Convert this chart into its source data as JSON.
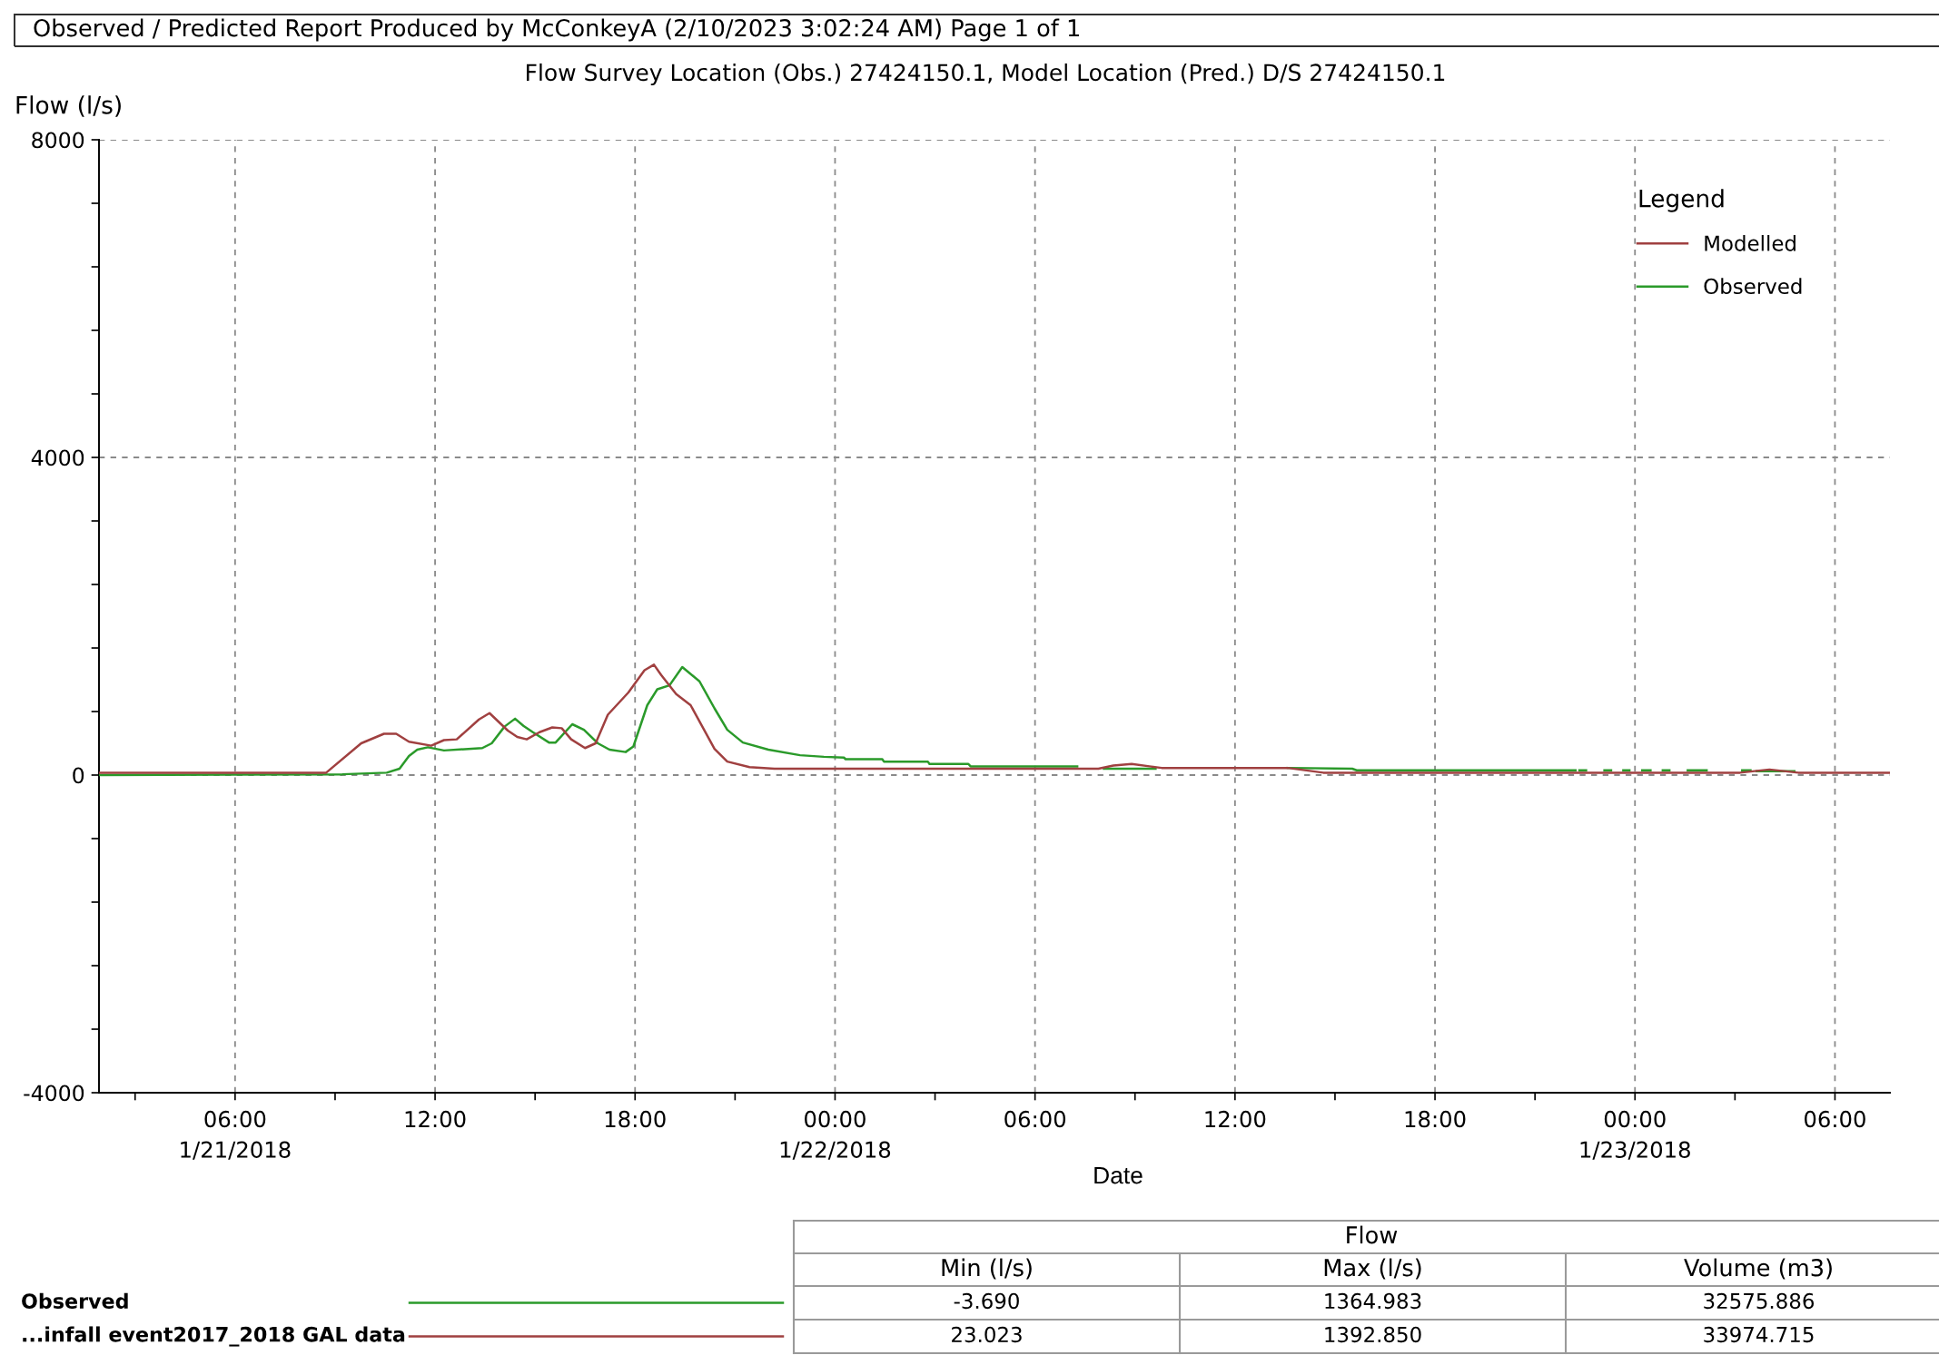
{
  "chart_data": {
    "type": "line",
    "title": "Flow Survey Location (Obs.) 27424150.1, Model Location (Pred.) D/S 27424150.1",
    "xlabel": "Date",
    "ylabel": "Flow (l/s)",
    "legend_title": "Legend",
    "legend": "top right",
    "grid": true,
    "xlim": [
      "2018-01-21T01:55",
      "2018-01-23T07:39"
    ],
    "ylim": [
      -4000,
      8000
    ],
    "xticks": [
      {
        "value": "2018-01-21T06:00",
        "label": "06:00\n1/21/2018"
      },
      {
        "value": "2018-01-21T12:00",
        "label": "12:00"
      },
      {
        "value": "2018-01-21T18:00",
        "label": "18:00"
      },
      {
        "value": "2018-01-22T00:00",
        "label": "00:00\n1/22/2018"
      },
      {
        "value": "2018-01-22T06:00",
        "label": "06:00"
      },
      {
        "value": "2018-01-22T12:00",
        "label": "12:00"
      },
      {
        "value": "2018-01-22T18:00",
        "label": "18:00"
      },
      {
        "value": "2018-01-23T00:00",
        "label": "00:00\n1/23/2018"
      },
      {
        "value": "2018-01-23T06:00",
        "label": "06:00"
      },
      {
        "value": "2018-01-21T03:00",
        "label": null
      },
      {
        "value": "2018-01-21T09:00",
        "label": null
      },
      {
        "value": "2018-01-21T15:00",
        "label": null
      },
      {
        "value": "2018-01-21T21:00",
        "label": null
      },
      {
        "value": "2018-01-22T03:00",
        "label": null
      },
      {
        "value": "2018-01-22T09:00",
        "label": null
      },
      {
        "value": "2018-01-22T15:00",
        "label": null
      },
      {
        "value": "2018-01-22T21:00",
        "label": null
      },
      {
        "value": "2018-01-23T03:00",
        "label": null
      }
    ],
    "yticks": [
      8000,
      4000,
      0,
      -4000,
      {
        "value": 7200,
        "label": null
      },
      {
        "value": 6400,
        "label": null
      },
      {
        "value": 5600,
        "label": null
      },
      {
        "value": 4800,
        "label": null
      },
      {
        "value": 3200,
        "label": null
      },
      {
        "value": 2400,
        "label": null
      },
      {
        "value": 1600,
        "label": null
      },
      {
        "value": 800,
        "label": null
      },
      {
        "value": -800,
        "label": null
      },
      {
        "value": -1600,
        "label": null
      },
      {
        "value": -2400,
        "label": null
      },
      {
        "value": -3200,
        "label": null
      }
    ],
    "series": [
      {
        "name": "Modelled",
        "color": "#a04040",
        "x": [
          "2018-01-21T01:55",
          "2018-01-21T08:44",
          "2018-01-21T09:47",
          "2018-01-21T10:28",
          "2018-01-21T10:50",
          "2018-01-21T11:13",
          "2018-01-21T11:53",
          "2018-01-21T12:16",
          "2018-01-21T12:39",
          "2018-01-21T13:19",
          "2018-01-21T13:38",
          "2018-01-21T14:11",
          "2018-01-21T14:28",
          "2018-01-21T14:45",
          "2018-01-21T15:08",
          "2018-01-21T15:31",
          "2018-01-21T15:48",
          "2018-01-21T16:05",
          "2018-01-21T16:30",
          "2018-01-21T16:49",
          "2018-01-21T17:11",
          "2018-01-21T17:48",
          "2018-01-21T18:17",
          "2018-01-21T18:34",
          "2018-01-21T18:47",
          "2018-01-21T19:14",
          "2018-01-21T19:40",
          "2018-01-21T20:23",
          "2018-01-21T20:46",
          "2018-01-21T21:26",
          "2018-01-21T22:11",
          "2018-01-22T07:54",
          "2018-01-22T08:21",
          "2018-01-22T08:54",
          "2018-01-22T09:26",
          "2018-01-22T09:48",
          "2018-01-22T13:35",
          "2018-01-22T14:39",
          "2018-01-23T03:09",
          "2018-01-23T04:02",
          "2018-01-23T04:54",
          "2018-01-23T07:39"
        ],
        "values": [
          30,
          30,
          400,
          520,
          520,
          420,
          370,
          440,
          450,
          700,
          780,
          560,
          480,
          450,
          540,
          600,
          590,
          450,
          340,
          400,
          760,
          1040,
          1320,
          1390,
          1260,
          1020,
          880,
          330,
          170,
          100,
          80,
          80,
          120,
          140,
          110,
          90,
          90,
          30,
          30,
          70,
          30,
          30
        ]
      },
      {
        "name": "Observed",
        "color": "#2a9a2a",
        "x": [
          "2018-01-21T01:55",
          "2018-01-21T09:13",
          "2018-01-21T10:33",
          "2018-01-21T10:56",
          "2018-01-21T11:13",
          "2018-01-21T11:28",
          "2018-01-21T11:47",
          "2018-01-21T12:16",
          "2018-01-21T13:25",
          "2018-01-21T13:42",
          "2018-01-21T14:05",
          "2018-01-21T14:24",
          "2018-01-21T14:39",
          "2018-01-21T14:56",
          "2018-01-21T15:25",
          "2018-01-21T15:37",
          "2018-01-21T16:07",
          "2018-01-21T16:28",
          "2018-01-21T16:53",
          "2018-01-21T17:14",
          "2018-01-21T17:43",
          "2018-01-21T17:57",
          "2018-01-21T18:22",
          "2018-01-21T18:40",
          "2018-01-21T19:02",
          "2018-01-21T19:25",
          "2018-01-21T19:56",
          "2018-01-21T20:23",
          "2018-01-21T20:46",
          "2018-01-21T21:14",
          "2018-01-21T22:00",
          "2018-01-21T22:57",
          "2018-01-21T23:40",
          "2018-01-22T00:16",
          "2018-01-22T00:19",
          "2018-01-22T01:25",
          "2018-01-22T01:28",
          "2018-01-22T02:47",
          "2018-01-22T02:50",
          "2018-01-22T04:00",
          "2018-01-22T04:04",
          "2018-01-22T07:16",
          "2018-01-22T07:40",
          "2018-01-22T08:04",
          "2018-01-22T09:37",
          "2018-01-22T11:30",
          "2018-01-22T13:35",
          "2018-01-22T15:31",
          "2018-01-22T15:39",
          "2018-01-22T22:13",
          "2018-01-22T22:16",
          "2018-01-22T22:20",
          "2018-01-22T22:32",
          "2018-01-22T22:48",
          "2018-01-22T23:05",
          "2018-01-22T23:17",
          "2018-01-22T23:28",
          "2018-01-22T23:39",
          "2018-01-22T23:50",
          "2018-01-23T00:01",
          "2018-01-23T00:13",
          "2018-01-23T00:28",
          "2018-01-23T00:39",
          "2018-01-23T00:50",
          "2018-01-23T01:02",
          "2018-01-23T01:18",
          "2018-01-23T01:35",
          "2018-01-23T02:09",
          "2018-01-23T02:40",
          "2018-01-23T03:13",
          "2018-01-23T03:28",
          "2018-01-23T03:33",
          "2018-01-23T03:39",
          "2018-01-23T04:47"
        ],
        "values": [
          0,
          10,
          30,
          80,
          240,
          320,
          350,
          310,
          340,
          400,
          610,
          710,
          620,
          540,
          410,
          410,
          640,
          570,
          400,
          320,
          290,
          360,
          880,
          1080,
          1130,
          1360,
          1180,
          840,
          570,
          410,
          320,
          250,
          230,
          220,
          200,
          200,
          170,
          170,
          140,
          140,
          110,
          110,
          null,
          80,
          80,
          null,
          90,
          80,
          60,
          60,
          null,
          60,
          60,
          null,
          60,
          60,
          null,
          60,
          60,
          null,
          60,
          60,
          null,
          60,
          60,
          null,
          60,
          60,
          null,
          60,
          60,
          null,
          50,
          50
        ]
      }
    ],
    "annotations": [
      "Observed / Predicted Report Produced by McConkeyA (2/10/2023 3:02:24 AM) Page 1 of 1",
      "Flow",
      "Min (l/s)",
      "Max (l/s)",
      "Volume (m3)",
      "Observed",
      "-3.690",
      "1364.983",
      "32575.886",
      "...infall event2017_2018 GAL data",
      "23.023",
      "1392.850",
      "33974.715"
    ]
  }
}
